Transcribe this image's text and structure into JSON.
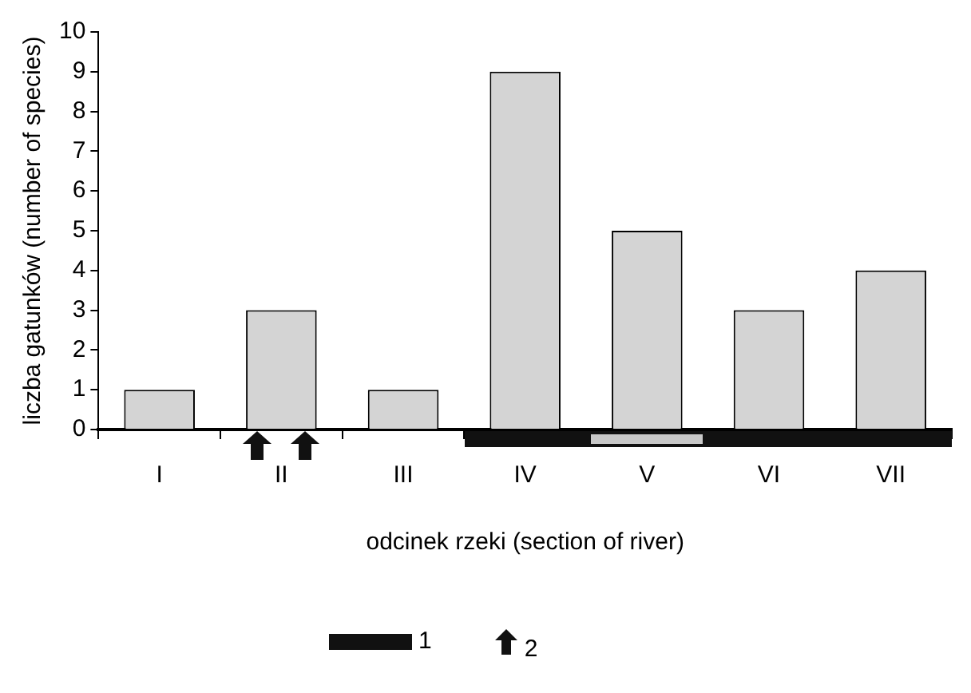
{
  "chart_data": {
    "type": "bar",
    "categories": [
      "I",
      "II",
      "III",
      "IV",
      "V",
      "VI",
      "VII"
    ],
    "values": [
      1,
      3,
      1,
      9,
      5,
      3,
      4
    ],
    "color": "#d4d4d4",
    "xlabel": "odcinek rzeki (section of river)",
    "ylabel": "liczba gatunków (number of species)",
    "ylim": [
      0,
      10
    ],
    "yticks": [
      0,
      1,
      2,
      3,
      4,
      5,
      6,
      7,
      8,
      9,
      10
    ],
    "grid": false,
    "legend": false,
    "annotations": [
      "1",
      "2"
    ]
  }
}
